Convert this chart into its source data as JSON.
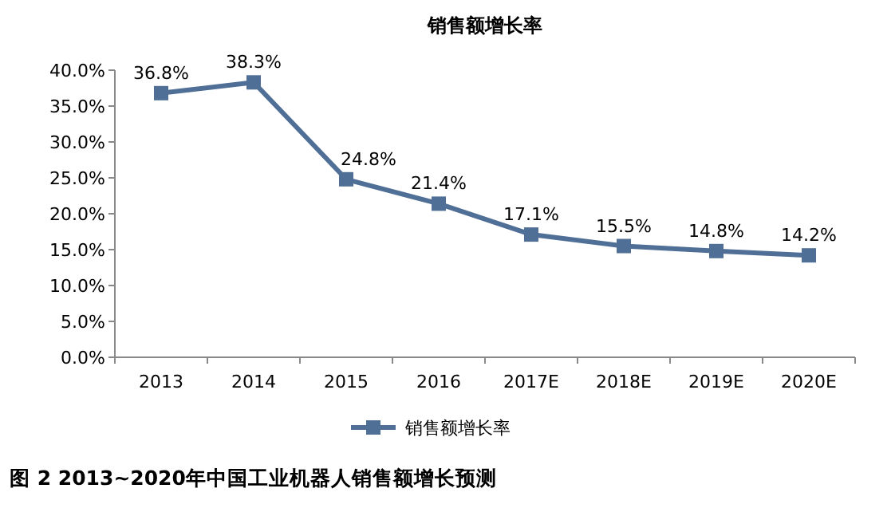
{
  "chart_data": {
    "type": "line",
    "title": "销售额增长率",
    "categories": [
      "2013",
      "2014",
      "2015",
      "2016",
      "2017E",
      "2018E",
      "2019E",
      "2020E"
    ],
    "series": [
      {
        "name": "销售额增长率",
        "color": "#4f6f96",
        "values": [
          36.8,
          38.3,
          24.8,
          21.4,
          17.1,
          15.5,
          14.8,
          14.2
        ],
        "value_labels": [
          "36.8%",
          "38.3%",
          "24.8%",
          "21.4%",
          "17.1%",
          "15.5%",
          "14.8%",
          "14.2%"
        ]
      }
    ],
    "ylim": [
      0,
      40
    ],
    "yticks": [
      {
        "value": 0,
        "label": "0.0%"
      },
      {
        "value": 5,
        "label": "5.0%"
      },
      {
        "value": 10,
        "label": "10.0%"
      },
      {
        "value": 15,
        "label": "15.0%"
      },
      {
        "value": 20,
        "label": "20.0%"
      },
      {
        "value": 25,
        "label": "25.0%"
      },
      {
        "value": 30,
        "label": "30.0%"
      },
      {
        "value": 35,
        "label": "35.0%"
      },
      {
        "value": 40,
        "label": "40.0%"
      }
    ],
    "marker": "square",
    "line_style": "solid",
    "grid": false,
    "legend": "bottom",
    "annotations": [
      "图 2 2013~2020年中国工业机器人销售额增长预测"
    ]
  }
}
